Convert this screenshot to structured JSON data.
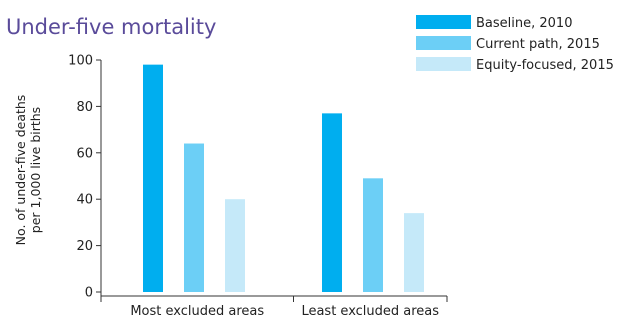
{
  "chart_data": {
    "type": "bar",
    "title": "Under-five mortality",
    "ylabel": [
      "No. of under-five deaths",
      "per 1,000 live births"
    ],
    "xlabel": "",
    "ylim": [
      0,
      100
    ],
    "yticks": [
      0,
      20,
      40,
      60,
      80,
      100
    ],
    "categories": [
      "Most excluded areas",
      "Least excluded areas"
    ],
    "series": [
      {
        "name": "Baseline, 2010",
        "color": "#00aeef",
        "values": [
          98,
          77
        ]
      },
      {
        "name": "Current path, 2015",
        "color": "#6ccff6",
        "values": [
          64,
          49
        ]
      },
      {
        "name": "Equity-focused, 2015",
        "color": "#c5e9f9",
        "values": [
          40,
          34
        ]
      }
    ],
    "legend_position": "top-right",
    "grid": false
  }
}
